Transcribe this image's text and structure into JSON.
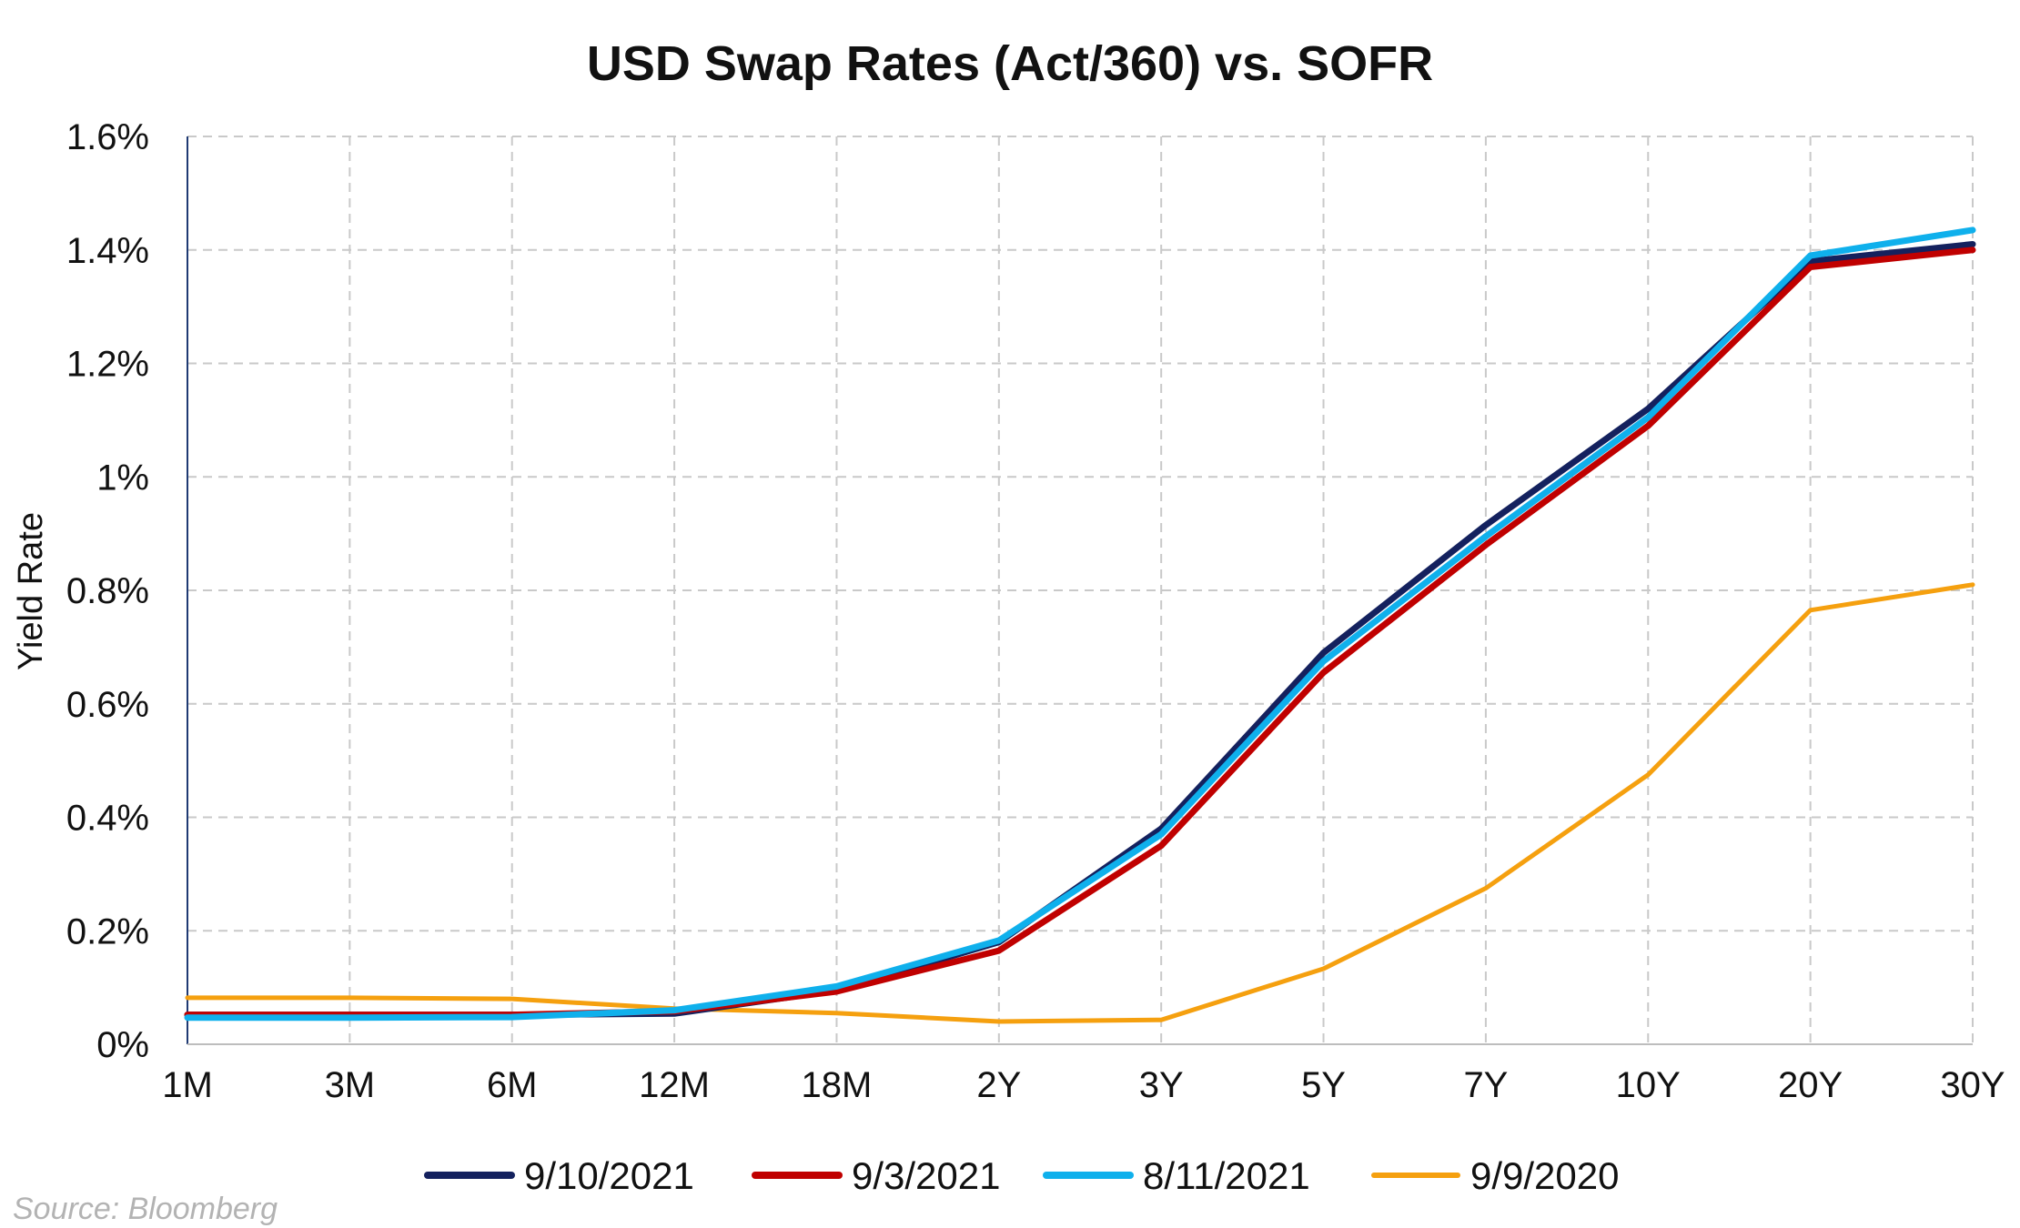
{
  "chart_data": {
    "type": "line",
    "title": "USD Swap Rates (Act/360) vs. SOFR",
    "xlabel": "",
    "ylabel": "Yield Rate",
    "ylim": [
      0,
      1.6
    ],
    "y_ticks": [
      0,
      0.2,
      0.4,
      0.6,
      0.8,
      1.0,
      1.2,
      1.4,
      1.6
    ],
    "y_tick_labels": [
      "0%",
      "0.2%",
      "0.4%",
      "0.6%",
      "0.8%",
      "1%",
      "1.2%",
      "1.4%",
      "1.6%"
    ],
    "categories": [
      "1M",
      "3M",
      "6M",
      "12M",
      "18M",
      "2Y",
      "3Y",
      "5Y",
      "7Y",
      "10Y",
      "20Y",
      "30Y"
    ],
    "grid": true,
    "legend_position": "bottom",
    "series": [
      {
        "name": "9/10/2021",
        "color": "#14215e",
        "values": [
          0.052,
          0.052,
          0.052,
          0.054,
          0.095,
          0.18,
          0.38,
          0.69,
          0.915,
          1.12,
          1.38,
          1.41
        ]
      },
      {
        "name": "9/3/2021",
        "color": "#c00000",
        "values": [
          0.052,
          0.052,
          0.052,
          0.058,
          0.093,
          0.165,
          0.35,
          0.655,
          0.88,
          1.09,
          1.37,
          1.4
        ]
      },
      {
        "name": "8/11/2021",
        "color": "#0fb0ec",
        "values": [
          0.047,
          0.047,
          0.048,
          0.06,
          0.102,
          0.183,
          0.37,
          0.675,
          0.895,
          1.105,
          1.39,
          1.435
        ]
      },
      {
        "name": "9/9/2020",
        "color": "#f5a00f",
        "values": [
          0.082,
          0.082,
          0.08,
          0.063,
          0.055,
          0.04,
          0.043,
          0.133,
          0.275,
          0.475,
          0.765,
          0.81
        ]
      }
    ]
  },
  "source": "Source: Bloomberg"
}
